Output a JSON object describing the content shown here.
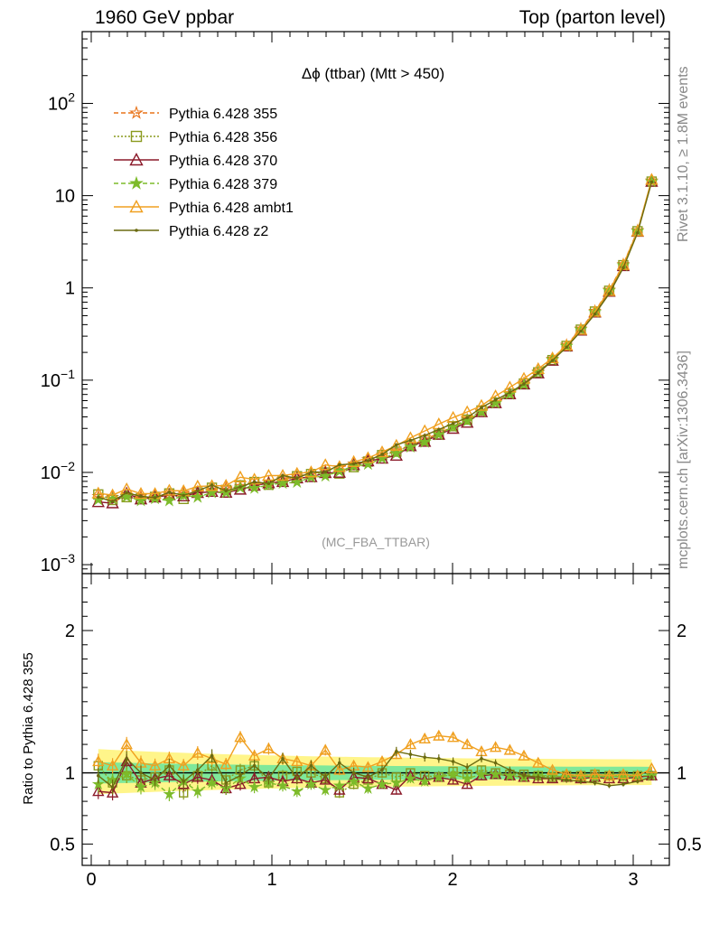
{
  "header": {
    "left": "1960 GeV ppbar",
    "right": "Top (parton level)"
  },
  "side_labels": {
    "rivet": "Rivet 3.1.10, ≥ 1.8M events",
    "mcplots": "mcplots.cern.ch [arXiv:1306.3436]"
  },
  "chart_data": [
    {
      "type": "line",
      "panel": "main",
      "title": "Δϕ (ttbar) (Mtt > 450)",
      "watermark": "(MC_FBA_TTBAR)",
      "xlabel": "",
      "ylabel": "",
      "xlim": [
        -0.05,
        3.2
      ],
      "ylim": [
        0.0008,
        600
      ],
      "yscale": "log",
      "ytick_labels": [
        {
          "value": 0.001,
          "base": "10",
          "exp": "−3"
        },
        {
          "value": 0.01,
          "base": "10",
          "exp": "−2"
        },
        {
          "value": 0.1,
          "base": "10",
          "exp": "−1"
        },
        {
          "value": 1,
          "base": "1",
          "exp": ""
        },
        {
          "value": 10,
          "base": "10",
          "exp": ""
        },
        {
          "value": 100,
          "base": "10",
          "exp": "2"
        }
      ],
      "legend_position": "top-left",
      "series": [
        {
          "name": "Pythia 6.428 355",
          "color": "#e8731a",
          "dash": "5,3",
          "marker": "star-open"
        },
        {
          "name": "Pythia 6.428 356",
          "color": "#8a9a1e",
          "dash": "2,2",
          "marker": "square-open"
        },
        {
          "name": "Pythia 6.428 370",
          "color": "#8b1a2a",
          "dash": "",
          "marker": "triangle-open"
        },
        {
          "name": "Pythia 6.428 379",
          "color": "#7dbb2a",
          "dash": "5,3",
          "marker": "star-filled"
        },
        {
          "name": "Pythia 6.428 ambt1",
          "color": "#f0a020",
          "dash": "",
          "marker": "triangle-open"
        },
        {
          "name": "Pythia 6.428 z2",
          "color": "#6b6b10",
          "dash": "",
          "marker": "dot"
        }
      ],
      "x": [
        0.039,
        0.118,
        0.196,
        0.275,
        0.353,
        0.432,
        0.511,
        0.589,
        0.668,
        0.746,
        0.825,
        0.903,
        0.982,
        1.06,
        1.139,
        1.217,
        1.296,
        1.374,
        1.453,
        1.532,
        1.61,
        1.689,
        1.767,
        1.846,
        1.924,
        2.003,
        2.081,
        2.16,
        2.238,
        2.317,
        2.395,
        2.474,
        2.553,
        2.631,
        2.71,
        2.788,
        2.867,
        2.945,
        3.024,
        3.102
      ],
      "reference_values": [
        0.0055,
        0.0054,
        0.0055,
        0.0055,
        0.0056,
        0.0058,
        0.006,
        0.0062,
        0.0065,
        0.0068,
        0.0071,
        0.0075,
        0.0079,
        0.0084,
        0.009,
        0.0096,
        0.0104,
        0.0113,
        0.0124,
        0.0138,
        0.0154,
        0.0173,
        0.0197,
        0.0227,
        0.0265,
        0.0314,
        0.0377,
        0.046,
        0.057,
        0.072,
        0.093,
        0.124,
        0.17,
        0.24,
        0.36,
        0.56,
        0.95,
        1.8,
        4.2,
        14.5
      ]
    },
    {
      "type": "line",
      "panel": "ratio",
      "ylabel": "Ratio to Pythia 6.428 355",
      "xlim": [
        -0.05,
        3.2
      ],
      "ylim": [
        0.35,
        2.4
      ],
      "ytick_labels": [
        {
          "value": 0.5,
          "label": "0.5"
        },
        {
          "value": 1,
          "label": "1"
        },
        {
          "value": 2,
          "label": "2"
        }
      ],
      "xtick_labels": [
        {
          "value": 0,
          "label": "0"
        },
        {
          "value": 1,
          "label": "1"
        },
        {
          "value": 2,
          "label": "2"
        },
        {
          "value": 3,
          "label": "3"
        }
      ],
      "band_inner_color": "#7fe89a",
      "band_outer_color": "#fff58a",
      "ratios": {
        "Pythia 6.428 356": [
          1.05,
          0.93,
          0.98,
          0.95,
          0.97,
          1.02,
          0.86,
          0.98,
          1.05,
          0.95,
          1.02,
          1.05,
          0.93,
          0.98,
          1.01,
          1.0,
          0.96,
          0.86,
          0.92,
          0.95,
          1.0,
          0.97,
          1.0,
          0.98,
          0.97,
          1.01,
          0.99,
          1.02,
          1.0,
          0.99,
          0.99,
          0.98,
          0.97,
          0.98,
          0.98,
          0.99,
          0.98,
          0.98,
          0.98,
          0.98
        ],
        "Pythia 6.428 370": [
          0.87,
          0.86,
          1.08,
          0.93,
          0.96,
          0.98,
          0.92,
          0.97,
          0.95,
          0.89,
          0.92,
          0.96,
          0.97,
          0.94,
          0.96,
          0.93,
          0.95,
          0.88,
          0.97,
          0.96,
          0.92,
          0.88,
          0.98,
          0.95,
          0.97,
          0.95,
          0.92,
          0.98,
          0.99,
          0.98,
          0.97,
          0.96,
          0.96,
          0.97,
          0.96,
          0.97,
          0.96,
          0.96,
          0.97,
          0.98
        ],
        "Pythia 6.428 379": [
          0.92,
          0.95,
          0.99,
          0.9,
          0.93,
          0.85,
          0.94,
          0.87,
          0.93,
          0.89,
          0.96,
          0.9,
          0.93,
          0.91,
          0.87,
          0.92,
          0.88,
          0.91,
          0.94,
          0.89,
          0.92,
          0.93,
          0.96,
          0.94,
          0.97,
          0.99,
          0.96,
          0.99,
          0.99,
          0.98,
          0.97,
          0.98,
          0.98,
          0.97,
          0.98,
          0.97,
          0.98,
          0.97,
          0.98,
          0.98
        ],
        "Pythia 6.428 ambt1": [
          1.08,
          1.05,
          1.2,
          1.07,
          1.05,
          1.1,
          1.05,
          1.14,
          1.1,
          1.06,
          1.25,
          1.12,
          1.17,
          1.1,
          1.08,
          1.05,
          1.16,
          1.02,
          1.05,
          1.04,
          1.08,
          1.13,
          1.2,
          1.24,
          1.26,
          1.25,
          1.2,
          1.15,
          1.18,
          1.16,
          1.12,
          1.07,
          1.02,
          0.99,
          0.98,
          0.99,
          0.98,
          0.99,
          0.98,
          1.03
        ],
        "Pythia 6.428 z2": [
          0.98,
          0.9,
          1.1,
          1.0,
          0.95,
          1.05,
          0.94,
          1.02,
          1.12,
          0.93,
          0.98,
          1.05,
          0.96,
          1.1,
          0.96,
          1.05,
          0.97,
          1.07,
          1.0,
          0.97,
          1.02,
          1.15,
          1.13,
          1.11,
          1.1,
          1.08,
          1.04,
          1.1,
          1.07,
          1.02,
          0.98,
          0.97,
          0.96,
          0.95,
          0.94,
          0.93,
          0.91,
          0.92,
          0.94,
          0.97
        ]
      }
    }
  ]
}
